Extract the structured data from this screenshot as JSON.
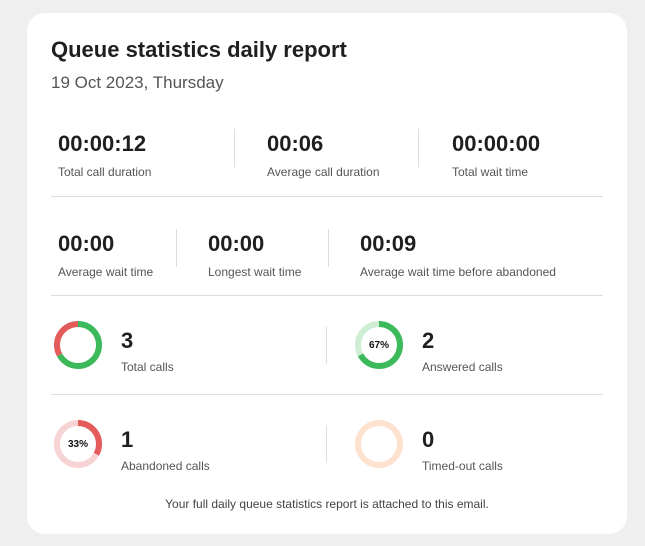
{
  "report": {
    "title": "Queue statistics daily report",
    "date": "19 Oct 2023, Thursday"
  },
  "metrics_row1": [
    {
      "value": "00:00:12",
      "label": "Total call duration"
    },
    {
      "value": "00:06",
      "label": "Average call duration"
    },
    {
      "value": "00:00:00",
      "label": "Total wait time"
    }
  ],
  "metrics_row2": [
    {
      "value": "00:00",
      "label": "Average wait time"
    },
    {
      "value": "00:00",
      "label": "Longest wait time"
    },
    {
      "value": "00:09",
      "label": "Average wait time before abandoned"
    }
  ],
  "stats": {
    "total": {
      "value": "3",
      "label": "Total calls",
      "answered_fraction": 0.67,
      "abandoned_fraction": 0.33,
      "colors": [
        "#3cb95a",
        "#e35b5b"
      ]
    },
    "answered": {
      "value": "2",
      "label": "Answered calls",
      "percent_label": "67%",
      "fraction": 0.67,
      "color": "#3cb95a",
      "track_color": "#cdeed5"
    },
    "abandoned": {
      "value": "1",
      "label": "Abandoned calls",
      "percent_label": "33%",
      "fraction": 0.33,
      "color": "#e35b5b",
      "track_color": "#f7d3d3"
    },
    "timedout": {
      "value": "0",
      "label": "Timed-out calls",
      "fraction": 0,
      "color": "#f4a66a",
      "track_color": "#fde3cf"
    }
  },
  "footer": "Your full daily queue statistics report is attached to this email."
}
